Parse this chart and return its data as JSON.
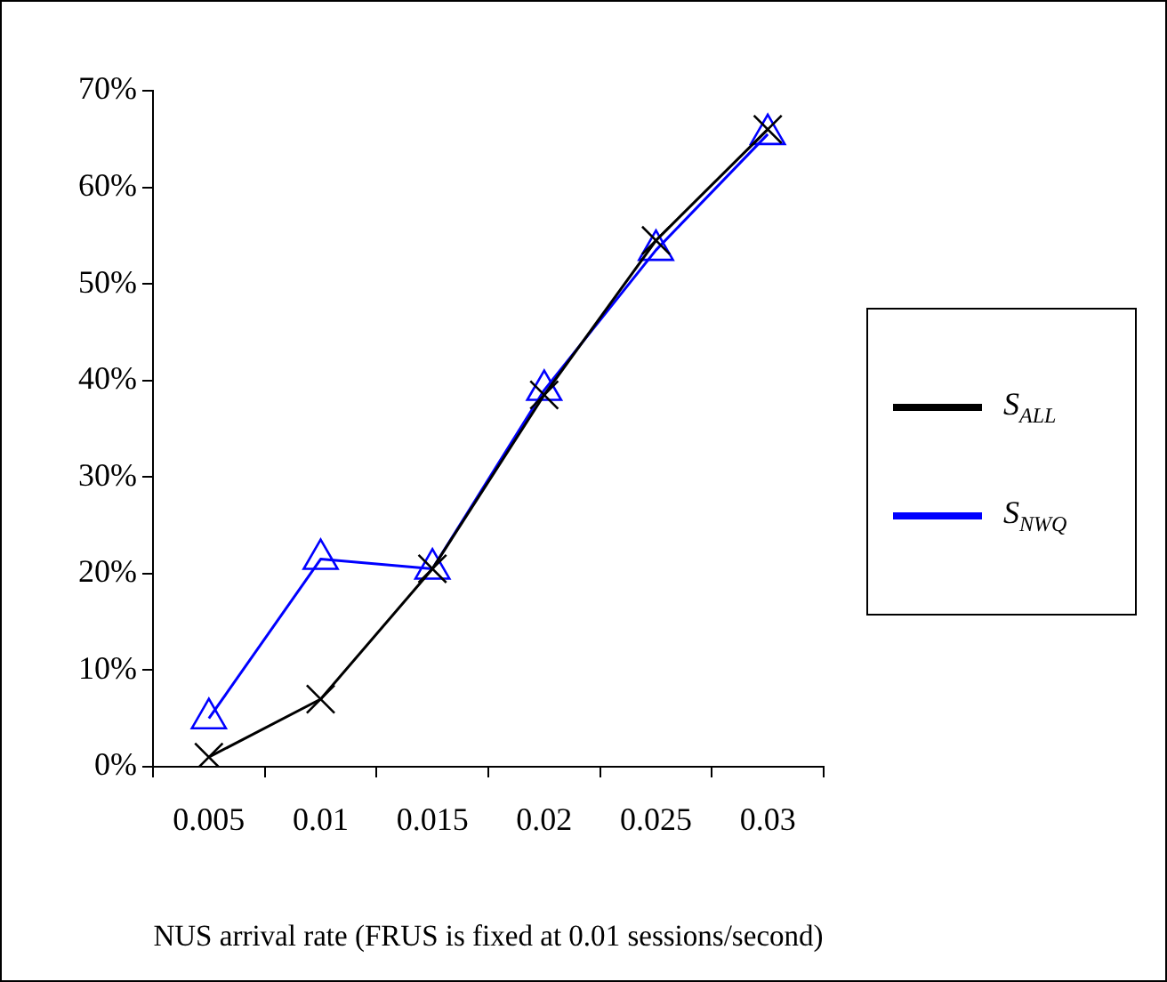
{
  "chart_data": {
    "type": "line",
    "xlabel": "NUS arrival rate (FRUS is fixed at 0.01 sessions/second)",
    "categories": [
      "0.005",
      "0.01",
      "0.015",
      "0.02",
      "0.025",
      "0.03"
    ],
    "series": [
      {
        "name": "S$_{ALL}$",
        "color": "#000000",
        "marker": "cross",
        "values": [
          1,
          7,
          20.5,
          38.5,
          54.5,
          66
        ]
      },
      {
        "name": "S$_{NWQ}$",
        "color": "#0000ff",
        "marker": "triangle",
        "values": [
          5,
          21.5,
          20.5,
          39,
          53.5,
          65.5
        ]
      }
    ],
    "ylim": [
      0,
      70
    ],
    "yticks": [
      {
        "value": 0,
        "label": "0%"
      },
      {
        "value": 10,
        "label": "10%"
      },
      {
        "value": 20,
        "label": "20%"
      },
      {
        "value": 30,
        "label": "30%"
      },
      {
        "value": 40,
        "label": "40%"
      },
      {
        "value": 50,
        "label": "50%"
      },
      {
        "value": 60,
        "label": "60%"
      },
      {
        "value": 70,
        "label": "70%"
      }
    ],
    "legend": "right"
  }
}
